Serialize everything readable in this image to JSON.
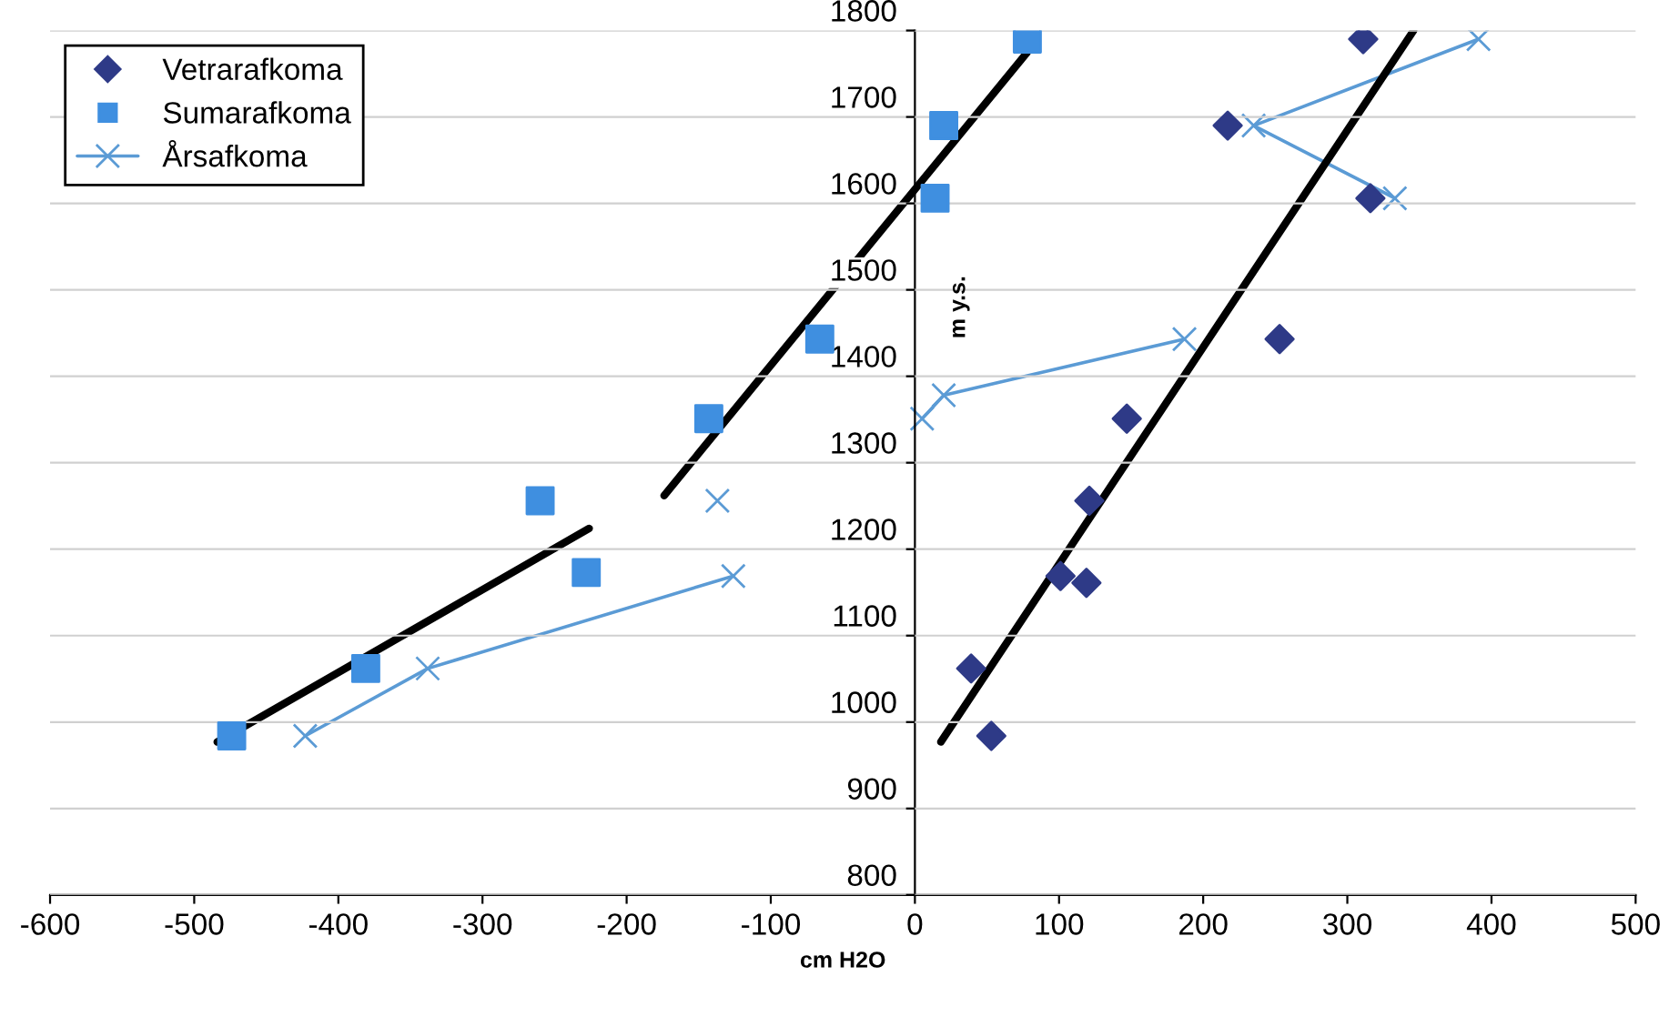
{
  "chart_data": {
    "type": "scatter",
    "xlabel": "cm H2O",
    "ylabel": "m y.s.",
    "xlim": [
      -600,
      500
    ],
    "ylim": [
      800,
      1800
    ],
    "xticks": [
      -600,
      -500,
      -400,
      -300,
      -200,
      -100,
      0,
      100,
      200,
      300,
      400,
      500
    ],
    "yticks": [
      800,
      900,
      1000,
      1100,
      1200,
      1300,
      1400,
      1500,
      1600,
      1700,
      1800
    ],
    "grid": "y",
    "legend": "top left",
    "series": [
      {
        "name": "Vetrarafkoma",
        "type": "scatter",
        "marker": "diamond",
        "color": "#2e3a87",
        "x": [
          311,
          217,
          316,
          253,
          147,
          121,
          101,
          119,
          39,
          53
        ],
        "values": [
          1790,
          1690,
          1606,
          1443,
          1351,
          1256,
          1169,
          1161,
          1062,
          984
        ]
      },
      {
        "name": "Sumarafkoma",
        "type": "scatter",
        "marker": "square",
        "color": "#3f8fe0",
        "x": [
          78,
          20,
          14,
          -66,
          -143,
          -260,
          -228,
          -381,
          -474
        ],
        "values": [
          1790,
          1690,
          1606,
          1443,
          1351,
          1256,
          1173,
          1062,
          984
        ]
      },
      {
        "name": "Årsafkoma",
        "type": "line",
        "marker": "cross",
        "color": "#5b9bd5",
        "x": [
          -423,
          -338,
          -126,
          null,
          -137,
          null,
          5,
          20,
          187,
          null,
          333,
          235,
          391
        ],
        "values": [
          984,
          1062,
          1169,
          null,
          1256,
          null,
          1351,
          1378,
          1443,
          null,
          1606,
          1690,
          1790
        ]
      },
      {
        "type": "line",
        "marker": "none",
        "color": "#000000",
        "x": [
          -484,
          -226
        ],
        "values": [
          977,
          1224
        ]
      },
      {
        "type": "line",
        "marker": "none",
        "color": "#000000",
        "x": [
          -174,
          78
        ],
        "values": [
          1262,
          1775
        ]
      },
      {
        "type": "line",
        "marker": "none",
        "color": "#000000",
        "x": [
          18,
          346
        ],
        "values": [
          977,
          1800
        ]
      }
    ]
  }
}
